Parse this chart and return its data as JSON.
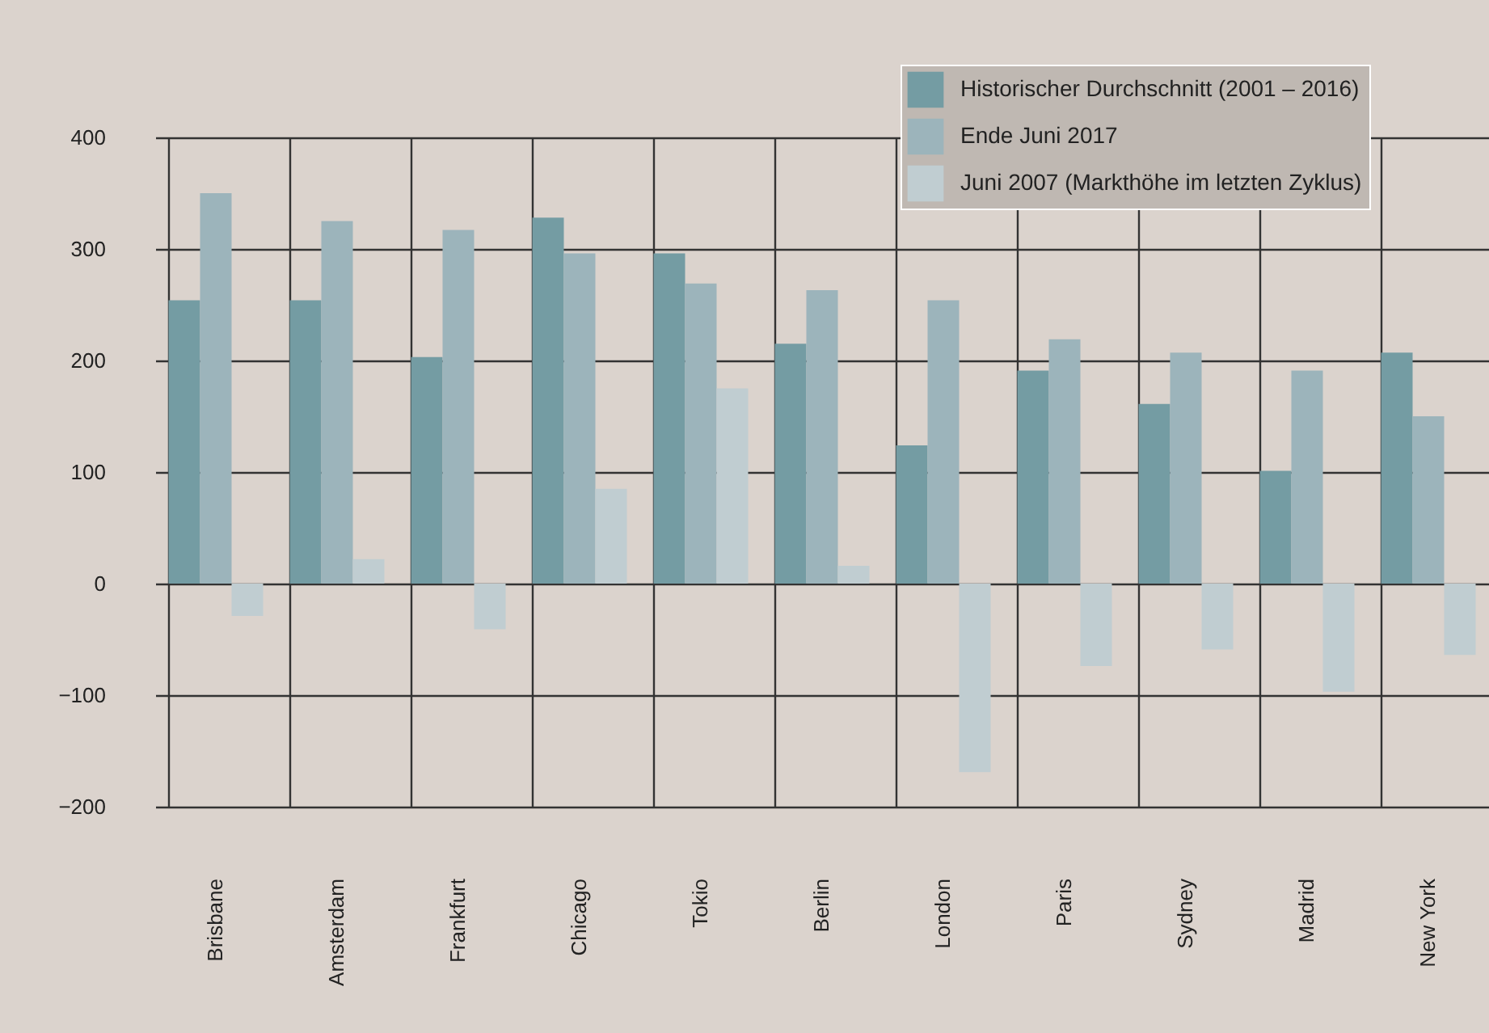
{
  "chart_data": {
    "type": "bar",
    "categories": [
      "Brisbane",
      "Amsterdam",
      "Frankfurt",
      "Chicago",
      "Tokio",
      "Berlin",
      "London",
      "Paris",
      "Sydney",
      "Madrid",
      "New York"
    ],
    "series": [
      {
        "name": "Historischer Durchschnitt (2001 – 2016)",
        "color": "#749ca3",
        "values": [
          254,
          254,
          203,
          328,
          296,
          215,
          124,
          191,
          161,
          101,
          207
        ]
      },
      {
        "name": "Ende Juni 2017",
        "color": "#9cb4bb",
        "values": [
          350,
          325,
          317,
          296,
          269,
          263,
          254,
          219,
          207,
          191,
          150
        ]
      },
      {
        "name": "Juni 2007 (Markthöhe im letzten Zyklus)",
        "color": "#c0cdd1",
        "values": [
          -29,
          22,
          -41,
          85,
          175,
          16,
          -169,
          -74,
          -59,
          -97,
          -64
        ]
      }
    ],
    "ylim": [
      -200,
      400
    ],
    "yticks": [
      -200,
      -100,
      0,
      100,
      200,
      300,
      400
    ],
    "grid": true,
    "legend": "top right"
  }
}
